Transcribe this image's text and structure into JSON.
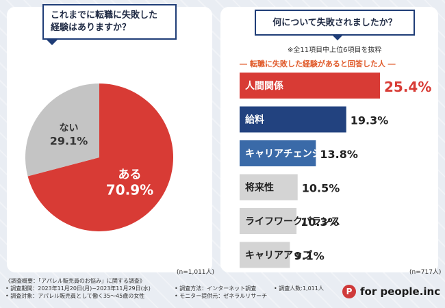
{
  "left": {
    "question": "これまでに転職に失敗した経験はありますか？",
    "question_line1": "これまでに転職に失敗した",
    "question_line2": "経験はありますか？",
    "n_label": "(n=1,011人)"
  },
  "right": {
    "question": "何について失敗されましたか？",
    "note": "※全11項目中上位6項目を抜粋",
    "subtitle": "― 転職に失敗した経験があると回答した人 ―",
    "n_label": "(n=717人)"
  },
  "chart_data": [
    {
      "type": "pie",
      "title": "これまでに転職に失敗した経験はありますか？",
      "categories": [
        "ある",
        "ない"
      ],
      "values": [
        70.9,
        29.1
      ],
      "value_labels": [
        "70.9%",
        "29.1%"
      ],
      "colors": [
        "#d83b35",
        "#c4c4c4"
      ]
    },
    {
      "type": "bar",
      "orientation": "horizontal",
      "title": "何について失敗されましたか？",
      "categories": [
        "人間関係",
        "給料",
        "キャリアチェンジ",
        "将来性",
        "ライフワークバランス",
        "キャリアアップ"
      ],
      "values": [
        25.4,
        19.3,
        13.8,
        10.5,
        10.3,
        9.1
      ],
      "value_labels": [
        "25.4%",
        "19.3%",
        "13.8%",
        "10.5%",
        "10.3%",
        "9.1%"
      ],
      "colors": [
        "#d83b35",
        "#22427f",
        "#3a6aa8",
        "#d4d4d4",
        "#d4d4d4",
        "#d4d4d4"
      ],
      "label_colors": [
        "#ffffff",
        "#ffffff",
        "#ffffff",
        "#222222",
        "#222222",
        "#222222"
      ],
      "xlim": [
        0,
        25.4
      ]
    }
  ],
  "footer": {
    "line1": "《調査概要：「アパレル販売員のお悩み」に関する調査》",
    "line2": "• 調査期間：2023年11月20日(月)~2023年11月29日(水)",
    "line3": "• 調査対象：アパレル販売員として働く35～45歳の女性",
    "method": "• 調査方法：インターネット調査",
    "monitor": "• モニター提供元：ゼネラルリサーチ",
    "people": "• 調査人数:1,011人"
  },
  "logo": {
    "mark": "P",
    "text": "for people.inc"
  }
}
